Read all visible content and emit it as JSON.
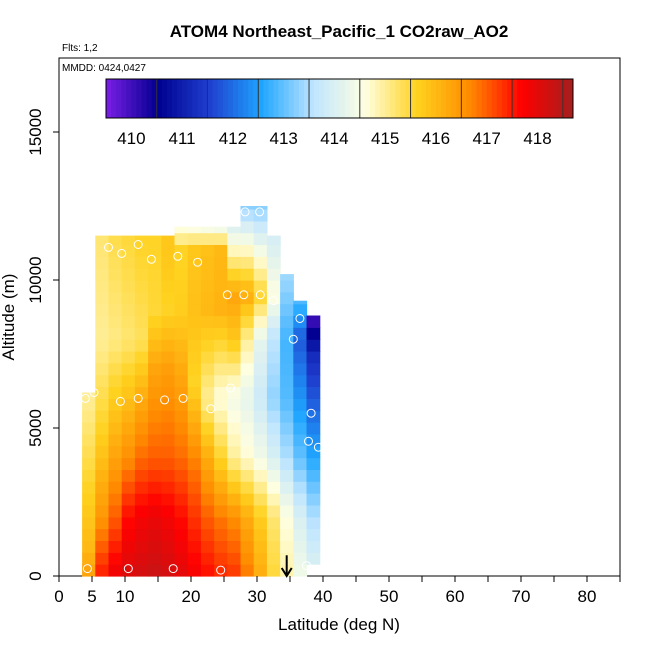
{
  "chart_data": {
    "type": "heatmap",
    "title": "ATOM4 Northeast_Pacific_1 CO2raw_AO2",
    "flights_label": "Flts: 1,2",
    "dates_label": "MMDD: 0424,0427",
    "xlabel": "Latitude (deg N)",
    "ylabel": "Altitude (m)",
    "xlim": [
      0,
      85
    ],
    "ylim": [
      0,
      17500
    ],
    "x_ticks": [
      0,
      5,
      10,
      20,
      30,
      40,
      50,
      60,
      70,
      80
    ],
    "x_minor_ticks": [
      15,
      25,
      35,
      45,
      55,
      65,
      75,
      85
    ],
    "y_ticks": [
      0,
      5000,
      10000,
      15000
    ],
    "colorbar": {
      "min": 409.5,
      "max": 418.7,
      "ticks": [
        410,
        411,
        412,
        413,
        414,
        415,
        416,
        417,
        418
      ],
      "colors": [
        "#7b1fe6",
        "#00008f",
        "#1f3fcf",
        "#1fa6ff",
        "#bfe5ff",
        "#ffffe0",
        "#ffd21f",
        "#ff8c00",
        "#ff0000",
        "#a51f1f"
      ]
    },
    "columns": [
      {
        "lat": 4.5,
        "alt_min": 0,
        "alt_max": 6200,
        "values": [
          [
            0,
            416.4
          ],
          [
            1000,
            416.0
          ],
          [
            3000,
            415.6
          ],
          [
            6000,
            415.0
          ]
        ]
      },
      {
        "lat": 6.5,
        "alt_min": 0,
        "alt_max": 11500,
        "values": [
          [
            0,
            417.5
          ],
          [
            2000,
            416.5
          ],
          [
            5000,
            415.6
          ],
          [
            8000,
            415.0
          ],
          [
            11500,
            415.2
          ]
        ]
      },
      {
        "lat": 8.5,
        "alt_min": 0,
        "alt_max": 11500,
        "values": [
          [
            0,
            417.9
          ],
          [
            2000,
            417.0
          ],
          [
            5000,
            416.0
          ],
          [
            8000,
            415.1
          ],
          [
            11500,
            415.4
          ]
        ]
      },
      {
        "lat": 10.5,
        "alt_min": 0,
        "alt_max": 11500,
        "values": [
          [
            0,
            418.1
          ],
          [
            2000,
            417.6
          ],
          [
            4000,
            416.6
          ],
          [
            6000,
            415.9
          ],
          [
            8000,
            415.2
          ],
          [
            11500,
            415.5
          ]
        ]
      },
      {
        "lat": 12.5,
        "alt_min": 0,
        "alt_max": 11500,
        "values": [
          [
            0,
            418.2
          ],
          [
            2000,
            417.8
          ],
          [
            4000,
            416.9
          ],
          [
            6000,
            416.2
          ],
          [
            8000,
            415.3
          ],
          [
            11500,
            415.6
          ]
        ]
      },
      {
        "lat": 14.5,
        "alt_min": 0,
        "alt_max": 11500,
        "values": [
          [
            0,
            418.3
          ],
          [
            2000,
            417.9
          ],
          [
            4000,
            417.0
          ],
          [
            7000,
            416.3
          ],
          [
            9000,
            415.5
          ],
          [
            11500,
            415.6
          ]
        ]
      },
      {
        "lat": 16.5,
        "alt_min": 0,
        "alt_max": 11500,
        "values": [
          [
            0,
            418.2
          ],
          [
            2000,
            417.8
          ],
          [
            4000,
            417.0
          ],
          [
            7000,
            416.4
          ],
          [
            9000,
            415.6
          ],
          [
            11000,
            415.8
          ]
        ]
      },
      {
        "lat": 18.5,
        "alt_min": 0,
        "alt_max": 11800,
        "values": [
          [
            0,
            418.0
          ],
          [
            2000,
            417.6
          ],
          [
            4000,
            416.9
          ],
          [
            7000,
            416.2
          ],
          [
            9000,
            415.7
          ],
          [
            11000,
            415.6
          ],
          [
            11800,
            414.5
          ]
        ]
      },
      {
        "lat": 20.5,
        "alt_min": 0,
        "alt_max": 11800,
        "values": [
          [
            0,
            417.8
          ],
          [
            2000,
            417.3
          ],
          [
            4000,
            416.7
          ],
          [
            6500,
            415.6
          ],
          [
            9000,
            415.9
          ],
          [
            11000,
            415.8
          ],
          [
            11800,
            414.4
          ]
        ]
      },
      {
        "lat": 22.5,
        "alt_min": 0,
        "alt_max": 11800,
        "values": [
          [
            0,
            417.6
          ],
          [
            2000,
            417.0
          ],
          [
            4000,
            416.2
          ],
          [
            6000,
            415.0
          ],
          [
            9000,
            416.0
          ],
          [
            11000,
            415.9
          ],
          [
            11800,
            414.3
          ]
        ]
      },
      {
        "lat": 24.5,
        "alt_min": 0,
        "alt_max": 11800,
        "values": [
          [
            0,
            417.4
          ],
          [
            2000,
            416.8
          ],
          [
            4000,
            415.6
          ],
          [
            6000,
            414.6
          ],
          [
            9000,
            416.1
          ],
          [
            11000,
            416.0
          ],
          [
            11800,
            414.2
          ]
        ]
      },
      {
        "lat": 26.5,
        "alt_min": 0,
        "alt_max": 11800,
        "values": [
          [
            0,
            417.3
          ],
          [
            2000,
            416.6
          ],
          [
            4000,
            415.0
          ],
          [
            6000,
            414.4
          ],
          [
            8000,
            415.8
          ],
          [
            9500,
            416.3
          ],
          [
            11800,
            414.0
          ]
        ]
      },
      {
        "lat": 28.5,
        "alt_min": 0,
        "alt_max": 12500,
        "values": [
          [
            0,
            416.8
          ],
          [
            2000,
            416.2
          ],
          [
            4000,
            414.7
          ],
          [
            6000,
            414.2
          ],
          [
            8000,
            415.0
          ],
          [
            9500,
            416.2
          ],
          [
            11800,
            414.0
          ],
          [
            12500,
            413.2
          ]
        ]
      },
      {
        "lat": 30.5,
        "alt_min": 0,
        "alt_max": 12500,
        "values": [
          [
            0,
            416.2
          ],
          [
            2000,
            415.7
          ],
          [
            4000,
            414.4
          ],
          [
            6000,
            413.8
          ],
          [
            8000,
            414.2
          ],
          [
            9500,
            415.6
          ],
          [
            11800,
            413.8
          ],
          [
            12500,
            413.2
          ]
        ]
      },
      {
        "lat": 32.5,
        "alt_min": 0,
        "alt_max": 11500,
        "values": [
          [
            0,
            415.5
          ],
          [
            2000,
            415.2
          ],
          [
            4000,
            414.0
          ],
          [
            6000,
            413.3
          ],
          [
            8000,
            413.6
          ],
          [
            9500,
            414.6
          ],
          [
            11500,
            413.9
          ]
        ]
      },
      {
        "lat": 34.5,
        "alt_min": 0,
        "alt_max": 10200,
        "values": [
          [
            0,
            414.9
          ],
          [
            2000,
            414.6
          ],
          [
            4000,
            413.5
          ],
          [
            6000,
            412.9
          ],
          [
            8000,
            412.8
          ],
          [
            10200,
            413.4
          ]
        ]
      },
      {
        "lat": 36.5,
        "alt_min": 0,
        "alt_max": 9300,
        "values": [
          [
            0,
            414.4
          ],
          [
            2000,
            414.0
          ],
          [
            4000,
            413.0
          ],
          [
            6000,
            412.4
          ],
          [
            8000,
            411.8
          ],
          [
            9300,
            412.9
          ]
        ]
      },
      {
        "lat": 38.5,
        "alt_min": 400,
        "alt_max": 8800,
        "values": [
          [
            400,
            414.0
          ],
          [
            2000,
            413.5
          ],
          [
            4000,
            412.6
          ],
          [
            6000,
            411.8
          ],
          [
            7500,
            411.2
          ],
          [
            8800,
            409.9
          ]
        ]
      }
    ],
    "sample_points": [
      {
        "lat": 4.3,
        "alt": 250
      },
      {
        "lat": 10.5,
        "alt": 250
      },
      {
        "lat": 17.3,
        "alt": 250
      },
      {
        "lat": 24.5,
        "alt": 200
      },
      {
        "lat": 37.5,
        "alt": 350
      },
      {
        "lat": 4.0,
        "alt": 6000
      },
      {
        "lat": 5.3,
        "alt": 6200
      },
      {
        "lat": 9.3,
        "alt": 5900
      },
      {
        "lat": 12.0,
        "alt": 6000
      },
      {
        "lat": 16.0,
        "alt": 5950
      },
      {
        "lat": 18.8,
        "alt": 6000
      },
      {
        "lat": 23.0,
        "alt": 5650
      },
      {
        "lat": 26.0,
        "alt": 6350
      },
      {
        "lat": 37.8,
        "alt": 4550
      },
      {
        "lat": 38.2,
        "alt": 5500
      },
      {
        "lat": 39.3,
        "alt": 4350
      },
      {
        "lat": 35.5,
        "alt": 8000
      },
      {
        "lat": 36.5,
        "alt": 8700
      },
      {
        "lat": 32.5,
        "alt": 9300
      },
      {
        "lat": 25.5,
        "alt": 9500
      },
      {
        "lat": 28.0,
        "alt": 9500
      },
      {
        "lat": 30.5,
        "alt": 9500
      },
      {
        "lat": 7.5,
        "alt": 11100
      },
      {
        "lat": 12.0,
        "alt": 11200
      },
      {
        "lat": 9.5,
        "alt": 10900
      },
      {
        "lat": 14.0,
        "alt": 10700
      },
      {
        "lat": 18.0,
        "alt": 10800
      },
      {
        "lat": 21.0,
        "alt": 10600
      },
      {
        "lat": 28.2,
        "alt": 12300
      },
      {
        "lat": 30.4,
        "alt": 12300
      }
    ],
    "marker_arrow": {
      "lat": 34.5,
      "from_alt": 700,
      "to_alt": 0
    }
  }
}
